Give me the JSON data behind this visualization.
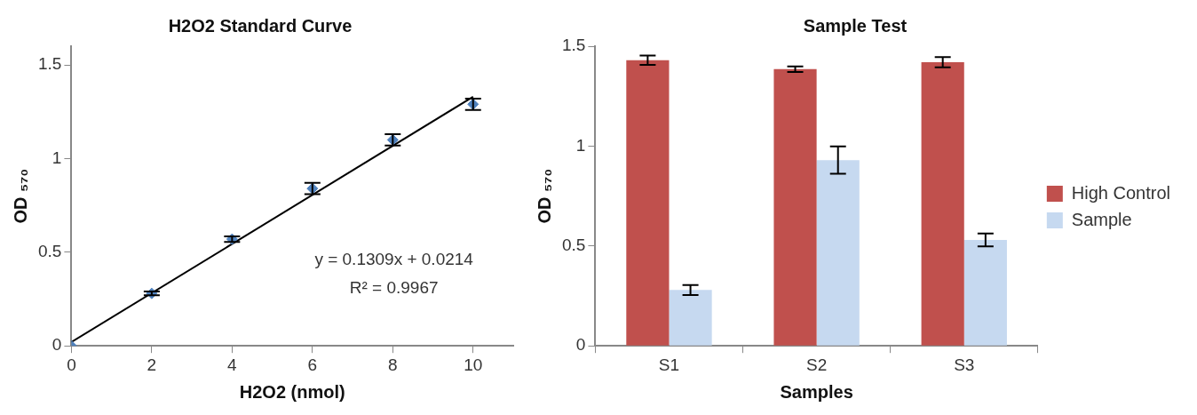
{
  "chart_data": [
    {
      "type": "scatter",
      "title": "H2O2 Standard Curve",
      "xlabel": "H2O2 (nmol)",
      "ylabel": "OD ₅₇₀",
      "xlim": [
        0,
        11
      ],
      "xticks": [
        0,
        2,
        4,
        6,
        8,
        10
      ],
      "ylim": [
        0,
        1.6
      ],
      "yticks": [
        0,
        0.5,
        1,
        1.5
      ],
      "grid": false,
      "legend": false,
      "annotations": [
        "y = 0.1309x + 0.0214",
        "R² = 0.9967"
      ],
      "series": [
        {
          "type": "scatter",
          "marker": "diamond",
          "color": "#4f81bd",
          "x": [
            0,
            2,
            4,
            6,
            8,
            10
          ],
          "values": [
            0,
            0.28,
            0.57,
            0.84,
            1.1,
            1.29
          ],
          "errors": [
            null,
            0.01,
            0.015,
            0.03,
            0.03,
            0.03
          ]
        },
        {
          "type": "line",
          "marker": "none",
          "color": "#000000",
          "x": [
            0,
            10
          ],
          "values": [
            0.02,
            1.33
          ]
        }
      ]
    },
    {
      "type": "bar",
      "title": "Sample Test",
      "xlabel": "Samples",
      "ylabel": "OD ₅₇₀",
      "categories": [
        "S1",
        "S2",
        "S3"
      ],
      "ylim": [
        0,
        1.5
      ],
      "yticks": [
        0,
        0.5,
        1,
        1.5
      ],
      "grid": false,
      "legend": "right",
      "series": [
        {
          "name": "High Control",
          "color": "#c0504d",
          "values": [
            1.43,
            1.385,
            1.42
          ],
          "errors": [
            0.023,
            0.014,
            0.026
          ]
        },
        {
          "name": "Sample",
          "color": "#c6d9f0",
          "values": [
            0.28,
            0.93,
            0.53
          ],
          "errors": [
            0.025,
            0.068,
            0.032
          ]
        }
      ]
    }
  ]
}
